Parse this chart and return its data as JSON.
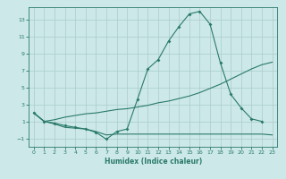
{
  "xlabel": "Humidex (Indice chaleur)",
  "bg_color": "#cce8e8",
  "grid_color": "#aacccc",
  "line_color": "#2a7a6a",
  "xlim": [
    -0.5,
    23.5
  ],
  "ylim": [
    -2.0,
    14.5
  ],
  "xticks": [
    0,
    1,
    2,
    3,
    4,
    5,
    6,
    7,
    8,
    9,
    10,
    11,
    12,
    13,
    14,
    15,
    16,
    17,
    18,
    19,
    20,
    21,
    22,
    23
  ],
  "yticks": [
    -1,
    1,
    3,
    5,
    7,
    9,
    11,
    13
  ],
  "line1_x": [
    0,
    1,
    2,
    3,
    4,
    5,
    6,
    7,
    8,
    9,
    10,
    11,
    12,
    13,
    14,
    15,
    16,
    17,
    18,
    19,
    20,
    21,
    22
  ],
  "line1_y": [
    2.0,
    1.0,
    0.8,
    0.5,
    0.3,
    0.1,
    -0.3,
    -1.1,
    -0.2,
    0.1,
    3.6,
    7.2,
    8.3,
    10.5,
    12.2,
    13.7,
    14.0,
    12.5,
    7.9,
    4.2,
    2.6,
    1.3,
    1.0
  ],
  "line2_x": [
    0,
    1,
    2,
    3,
    4,
    5,
    6,
    7,
    8,
    9,
    10,
    11,
    12,
    13,
    14,
    15,
    16,
    17,
    18,
    19,
    20,
    21,
    22,
    23
  ],
  "line2_y": [
    2.0,
    1.0,
    1.2,
    1.5,
    1.7,
    1.9,
    2.0,
    2.2,
    2.4,
    2.5,
    2.7,
    2.9,
    3.2,
    3.4,
    3.7,
    4.0,
    4.4,
    4.9,
    5.4,
    6.0,
    6.6,
    7.2,
    7.7,
    8.0
  ],
  "line3_x": [
    0,
    1,
    2,
    3,
    4,
    5,
    6,
    7,
    8,
    9,
    10,
    11,
    12,
    13,
    14,
    15,
    16,
    17,
    18,
    19,
    20,
    21,
    22,
    23
  ],
  "line3_y": [
    2.0,
    1.0,
    0.7,
    0.3,
    0.2,
    0.1,
    -0.2,
    -0.6,
    -0.5,
    -0.5,
    -0.5,
    -0.5,
    -0.5,
    -0.5,
    -0.5,
    -0.5,
    -0.5,
    -0.5,
    -0.5,
    -0.5,
    -0.5,
    -0.5,
    -0.5,
    -0.6
  ]
}
